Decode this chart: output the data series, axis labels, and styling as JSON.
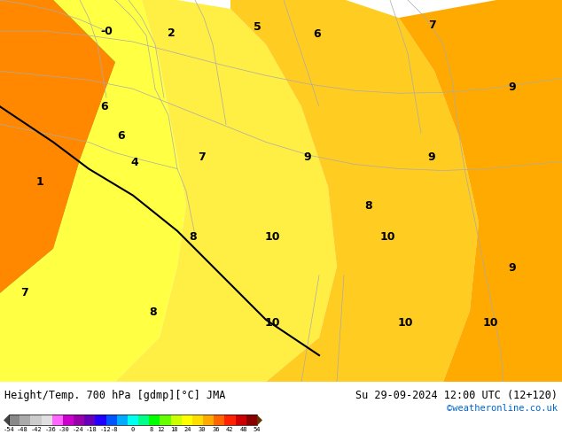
{
  "title_left": "Height/Temp. 700 hPa [gdmp][°C] JMA",
  "title_right": "Su 29-09-2024 12:00 UTC (12+120)",
  "credit": "©weatheronline.co.uk",
  "colorbar_ticks": [
    -54,
    -48,
    -42,
    -36,
    -30,
    -24,
    -18,
    -12,
    -8,
    0,
    8,
    12,
    18,
    24,
    30,
    36,
    42,
    48,
    54
  ],
  "colorbar_colors": [
    "#888888",
    "#aaaaaa",
    "#cccccc",
    "#e0e0e0",
    "#ff66ff",
    "#cc00cc",
    "#9900aa",
    "#6600bb",
    "#2200ff",
    "#0055ff",
    "#00aaff",
    "#00ffee",
    "#00ff88",
    "#00ff00",
    "#66ff00",
    "#ccff00",
    "#ffff00",
    "#ffdd00",
    "#ffaa00",
    "#ff6600",
    "#ff2200",
    "#cc0000",
    "#880000"
  ],
  "bg_color": "#ffc000",
  "fig_width": 6.34,
  "fig_height": 4.9,
  "dpi": 100
}
